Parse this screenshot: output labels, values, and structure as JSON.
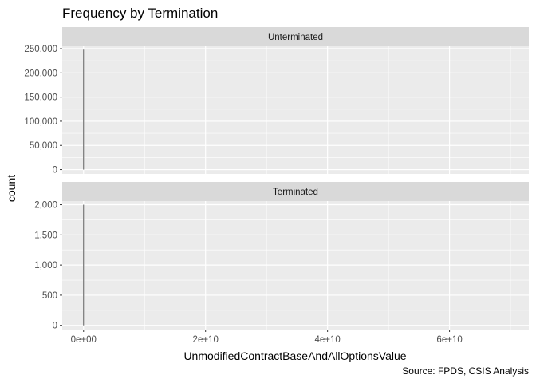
{
  "chart_data": {
    "type": "bar",
    "title": "Frequency by Termination",
    "xlabel": "UnmodifiedContractBaseAndAllOptionsValue",
    "ylabel": "count",
    "caption": "Source: FPDS, CSIS Analysis",
    "xlim": [
      -3500000000,
      73000000000
    ],
    "x_ticks": [
      0,
      20000000000,
      40000000000,
      60000000000
    ],
    "x_tick_labels": [
      "0e+00",
      "2e+10",
      "4e+10",
      "6e+10"
    ],
    "grid": true,
    "facets": [
      {
        "label": "Unterminated",
        "ylim": [
          -9000,
          255000
        ],
        "y_ticks": [
          0,
          50000,
          100000,
          150000,
          200000,
          250000
        ],
        "y_tick_labels": [
          "0",
          "50,000",
          "100,000",
          "150,000",
          "200,000",
          "250,000"
        ],
        "bars": [
          {
            "x": 0,
            "count": 248000
          }
        ]
      },
      {
        "label": "Terminated",
        "ylim": [
          -70,
          2060
        ],
        "y_ticks": [
          0,
          500,
          1000,
          1500,
          2000
        ],
        "y_tick_labels": [
          "0",
          "500",
          "1,000",
          "1,500",
          "2,000"
        ],
        "bars": [
          {
            "x": 0,
            "count": 2000
          }
        ]
      }
    ]
  },
  "colors": {
    "panel_bg": "#ebebeb",
    "strip_bg": "#d9d9d9",
    "grid": "#ffffff",
    "bar": "#595959",
    "text": "#000000",
    "tick_text": "#4d4d4d"
  }
}
